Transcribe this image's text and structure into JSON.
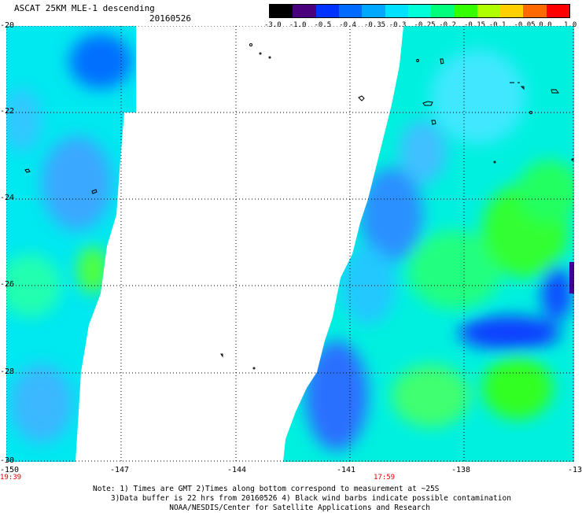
{
  "header": {
    "title": "ASCAT 25KM MLE-1 descending",
    "date": "20160526"
  },
  "colorbar": {
    "labels": [
      "-3.0",
      "-1.0",
      "-0.5",
      "-0.4",
      "-0.35",
      "-0.3",
      "-0.25",
      "-0.2",
      "-0.15",
      "-0.1",
      "-0.05",
      "0.0",
      "1.0"
    ],
    "colors": [
      "#000000",
      "#4a007a",
      "#0033ff",
      "#006cff",
      "#00a8ff",
      "#00e0ff",
      "#00ffd8",
      "#00ff7a",
      "#33ff00",
      "#b0ff00",
      "#ffd000",
      "#ff6a00",
      "#ff0000"
    ]
  },
  "map": {
    "lat_labels": [
      "-20",
      "-22",
      "-24",
      "-26",
      "-28",
      "-30"
    ],
    "lon_labels": [
      "-150",
      "-147",
      "-144",
      "-141",
      "-138",
      "-13"
    ],
    "time_labels": {
      "left": "19:39",
      "right": "17:59"
    }
  },
  "note": {
    "line1": "Note: 1) Times are GMT 2)Times along bottom correspond to measurement at ~25S",
    "line2": "3)Data buffer is 22 hrs from 20160526 4) Black wind barbs indicate possible contamination",
    "line3": "NOAA/NESDIS/Center for Satellite Applications and Research"
  }
}
